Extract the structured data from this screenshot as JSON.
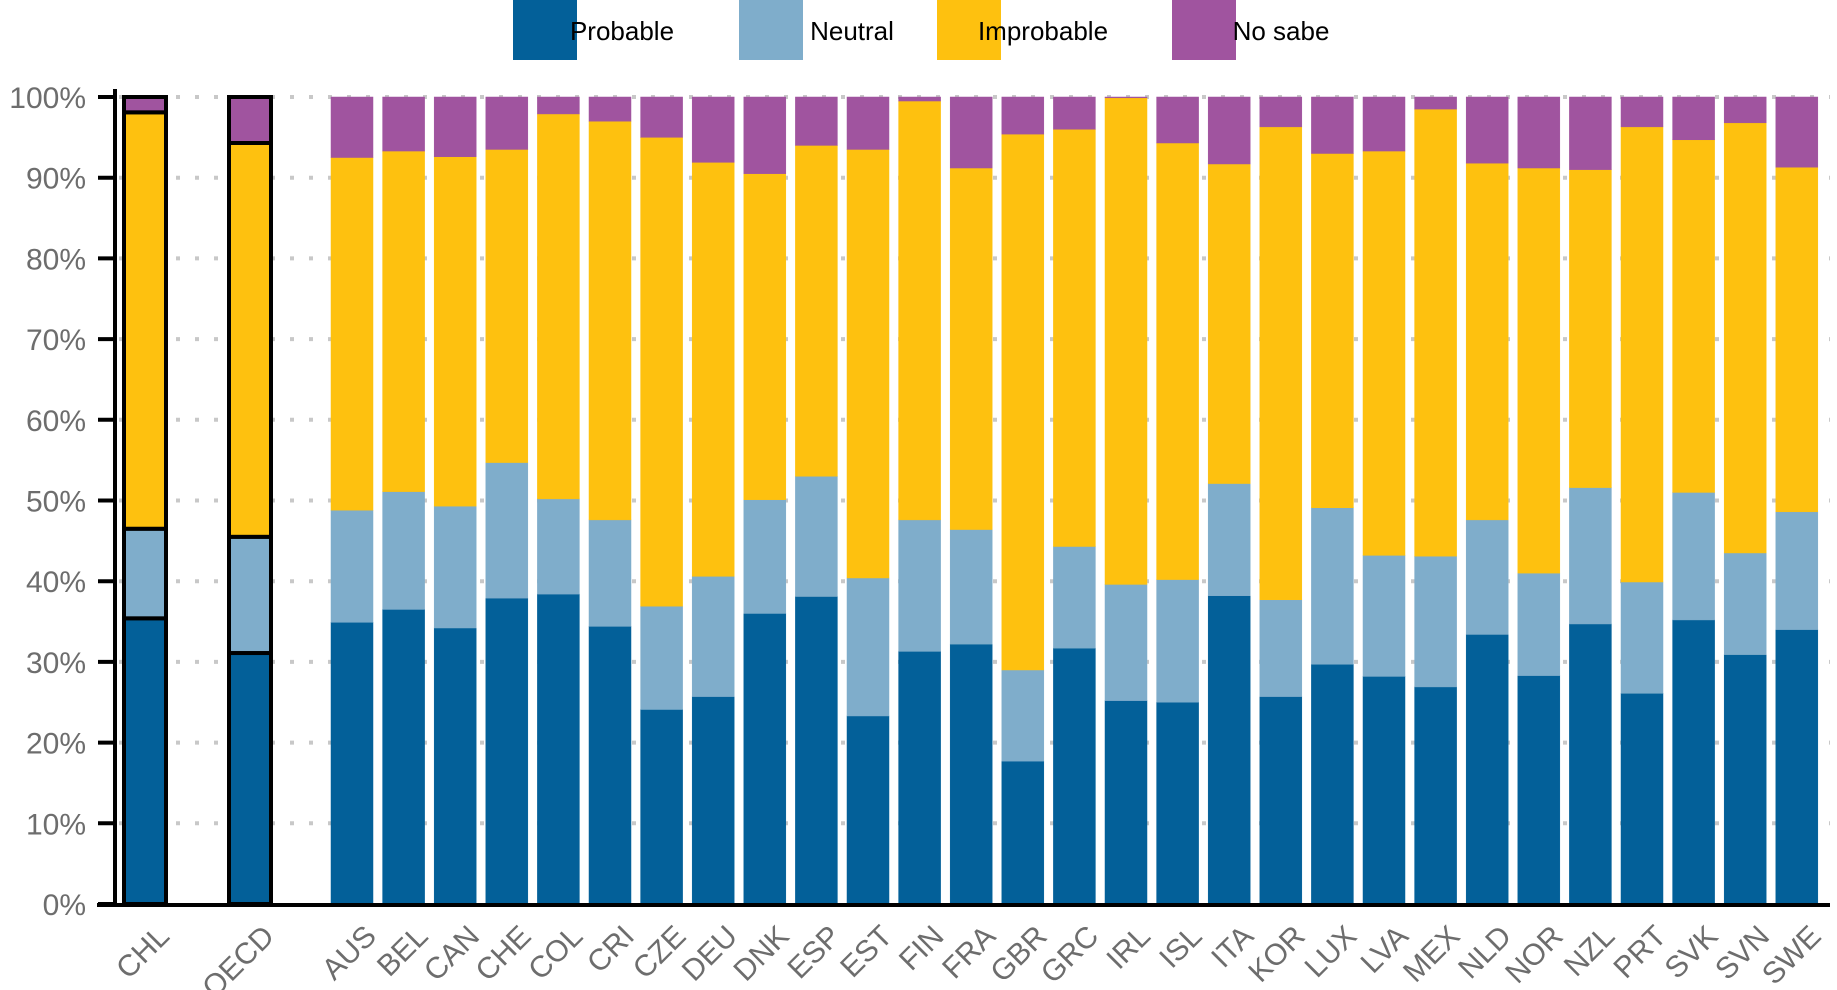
{
  "chart_data": {
    "type": "bar",
    "stacked": true,
    "percent": true,
    "title": "",
    "xlabel": "",
    "ylabel": "",
    "ylim": [
      0,
      100
    ],
    "yticks": [
      "0%",
      "10%",
      "20%",
      "30%",
      "40%",
      "50%",
      "60%",
      "70%",
      "80%",
      "90%",
      "100%"
    ],
    "grid": "horizontal dotted",
    "legend_position": "top-center",
    "categories": [
      "CHL",
      "OECD",
      "AUS",
      "BEL",
      "CAN",
      "CHE",
      "COL",
      "CRI",
      "CZE",
      "DEU",
      "DNK",
      "ESP",
      "EST",
      "FIN",
      "FRA",
      "GBR",
      "GRC",
      "IRL",
      "ISL",
      "ITA",
      "KOR",
      "LUX",
      "LVA",
      "MEX",
      "NLD",
      "NOR",
      "NZL",
      "PRT",
      "SVK",
      "SVN",
      "SWE"
    ],
    "highlighted_categories": [
      "CHL",
      "OECD"
    ],
    "series": [
      {
        "name": "Probable",
        "color": "#036099",
        "values": [
          35.4,
          31.1,
          34.9,
          36.5,
          34.2,
          37.9,
          38.4,
          34.4,
          24.1,
          25.7,
          36.0,
          38.1,
          23.3,
          31.3,
          32.2,
          17.7,
          31.7,
          25.2,
          25.0,
          38.2,
          25.7,
          29.7,
          28.2,
          26.9,
          33.4,
          28.3,
          34.7,
          26.1,
          35.2,
          30.9,
          34.0
        ]
      },
      {
        "name": "Neutral",
        "color": "#7fadcb",
        "values": [
          11.1,
          14.4,
          13.9,
          14.6,
          15.1,
          16.8,
          11.8,
          13.2,
          12.8,
          14.9,
          14.1,
          14.9,
          17.1,
          16.3,
          14.2,
          11.3,
          12.6,
          14.4,
          15.2,
          13.9,
          12.0,
          19.4,
          15.0,
          16.2,
          14.2,
          12.7,
          16.9,
          13.8,
          15.8,
          12.6,
          14.6
        ]
      },
      {
        "name": "Improbable",
        "color": "#fec10f",
        "values": [
          51.6,
          48.8,
          43.7,
          42.2,
          43.3,
          38.8,
          47.7,
          49.4,
          58.1,
          51.3,
          40.4,
          41.0,
          53.1,
          51.9,
          44.8,
          66.4,
          51.7,
          60.3,
          54.1,
          39.6,
          58.6,
          43.9,
          50.1,
          55.4,
          44.2,
          50.2,
          39.4,
          56.4,
          43.7,
          53.3,
          42.7
        ]
      },
      {
        "name": "No sabe",
        "color": "#a0549f",
        "values": [
          1.9,
          5.7,
          7.5,
          6.7,
          7.4,
          6.5,
          2.1,
          3.0,
          5.0,
          8.1,
          9.5,
          6.0,
          6.5,
          0.5,
          8.8,
          4.6,
          4.0,
          0.1,
          5.7,
          8.3,
          3.7,
          7.0,
          6.7,
          1.5,
          8.2,
          8.8,
          9.0,
          3.7,
          5.3,
          3.2,
          8.7
        ]
      }
    ]
  }
}
